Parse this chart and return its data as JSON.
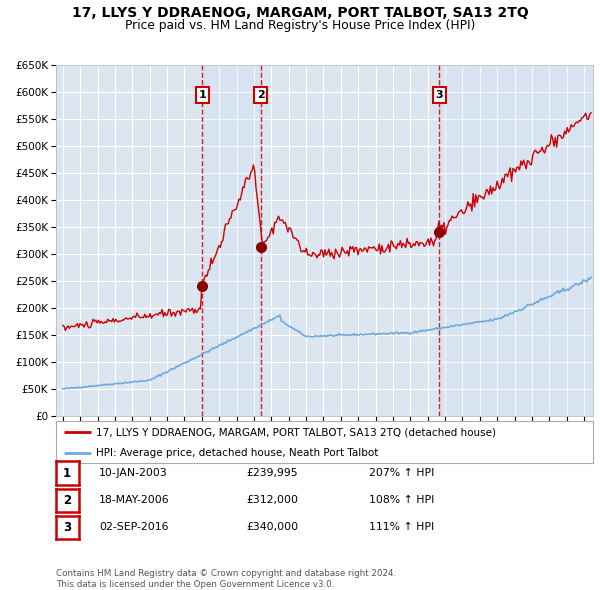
{
  "title": "17, LLYS Y DDRAENOG, MARGAM, PORT TALBOT, SA13 2TQ",
  "subtitle": "Price paid vs. HM Land Registry's House Price Index (HPI)",
  "ylim": [
    0,
    650000
  ],
  "yticks": [
    0,
    50000,
    100000,
    150000,
    200000,
    250000,
    300000,
    350000,
    400000,
    450000,
    500000,
    550000,
    600000,
    650000
  ],
  "ytick_labels": [
    "£0",
    "£50K",
    "£100K",
    "£150K",
    "£200K",
    "£250K",
    "£300K",
    "£350K",
    "£400K",
    "£450K",
    "£500K",
    "£550K",
    "£600K",
    "£650K"
  ],
  "xlim_start": 1994.6,
  "xlim_end": 2025.5,
  "xticks": [
    1995,
    1996,
    1997,
    1998,
    1999,
    2000,
    2001,
    2002,
    2003,
    2004,
    2005,
    2006,
    2007,
    2008,
    2009,
    2010,
    2011,
    2012,
    2013,
    2014,
    2015,
    2016,
    2017,
    2018,
    2019,
    2020,
    2021,
    2022,
    2023,
    2024,
    2025
  ],
  "plot_bg_color": "#dce6f1",
  "grid_color": "#ffffff",
  "hpi_line_color": "#6fa8dc",
  "price_line_color": "#cc0000",
  "dot_color": "#8b0000",
  "vline_color": "#cc0000",
  "sale1_x": 2003.033,
  "sale1_y": 239995,
  "sale2_x": 2006.38,
  "sale2_y": 312000,
  "sale3_x": 2016.67,
  "sale3_y": 340000,
  "legend_property": "17, LLYS Y DDRAENOG, MARGAM, PORT TALBOT, SA13 2TQ (detached house)",
  "legend_hpi": "HPI: Average price, detached house, Neath Port Talbot",
  "table_rows": [
    {
      "num": "1",
      "date": "10-JAN-2003",
      "price": "£239,995",
      "change": "207% ↑ HPI"
    },
    {
      "num": "2",
      "date": "18-MAY-2006",
      "price": "£312,000",
      "change": "108% ↑ HPI"
    },
    {
      "num": "3",
      "date": "02-SEP-2016",
      "price": "£340,000",
      "change": "111% ↑ HPI"
    }
  ],
  "footer": "Contains HM Land Registry data © Crown copyright and database right 2024.\nThis data is licensed under the Open Government Licence v3.0."
}
